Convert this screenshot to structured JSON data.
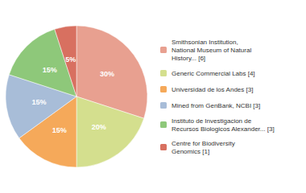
{
  "chart_data": {
    "type": "pie",
    "categories": [
      "Smithsonian Institution,\nNational Museum of Natural\nHistory... [6]",
      "Generic Commercial Labs [4]",
      "Universidad de los Andes [3]",
      "Mined from GenBank, NCBI [3]",
      "Instituto de Investigacion de\nRecursos Biologicos Alexander... [3]",
      "Centre for Biodiversity\nGenomics [1]"
    ],
    "values": [
      30,
      20,
      15,
      15,
      15,
      5
    ],
    "value_labels": [
      "30%",
      "20%",
      "15%",
      "15%",
      "15%",
      "5%"
    ],
    "colors": [
      "#E8A090",
      "#D4DF8E",
      "#F5A95A",
      "#A8BDD8",
      "#8EC87A",
      "#D87060"
    ],
    "data_labels": true,
    "legend": "right"
  }
}
